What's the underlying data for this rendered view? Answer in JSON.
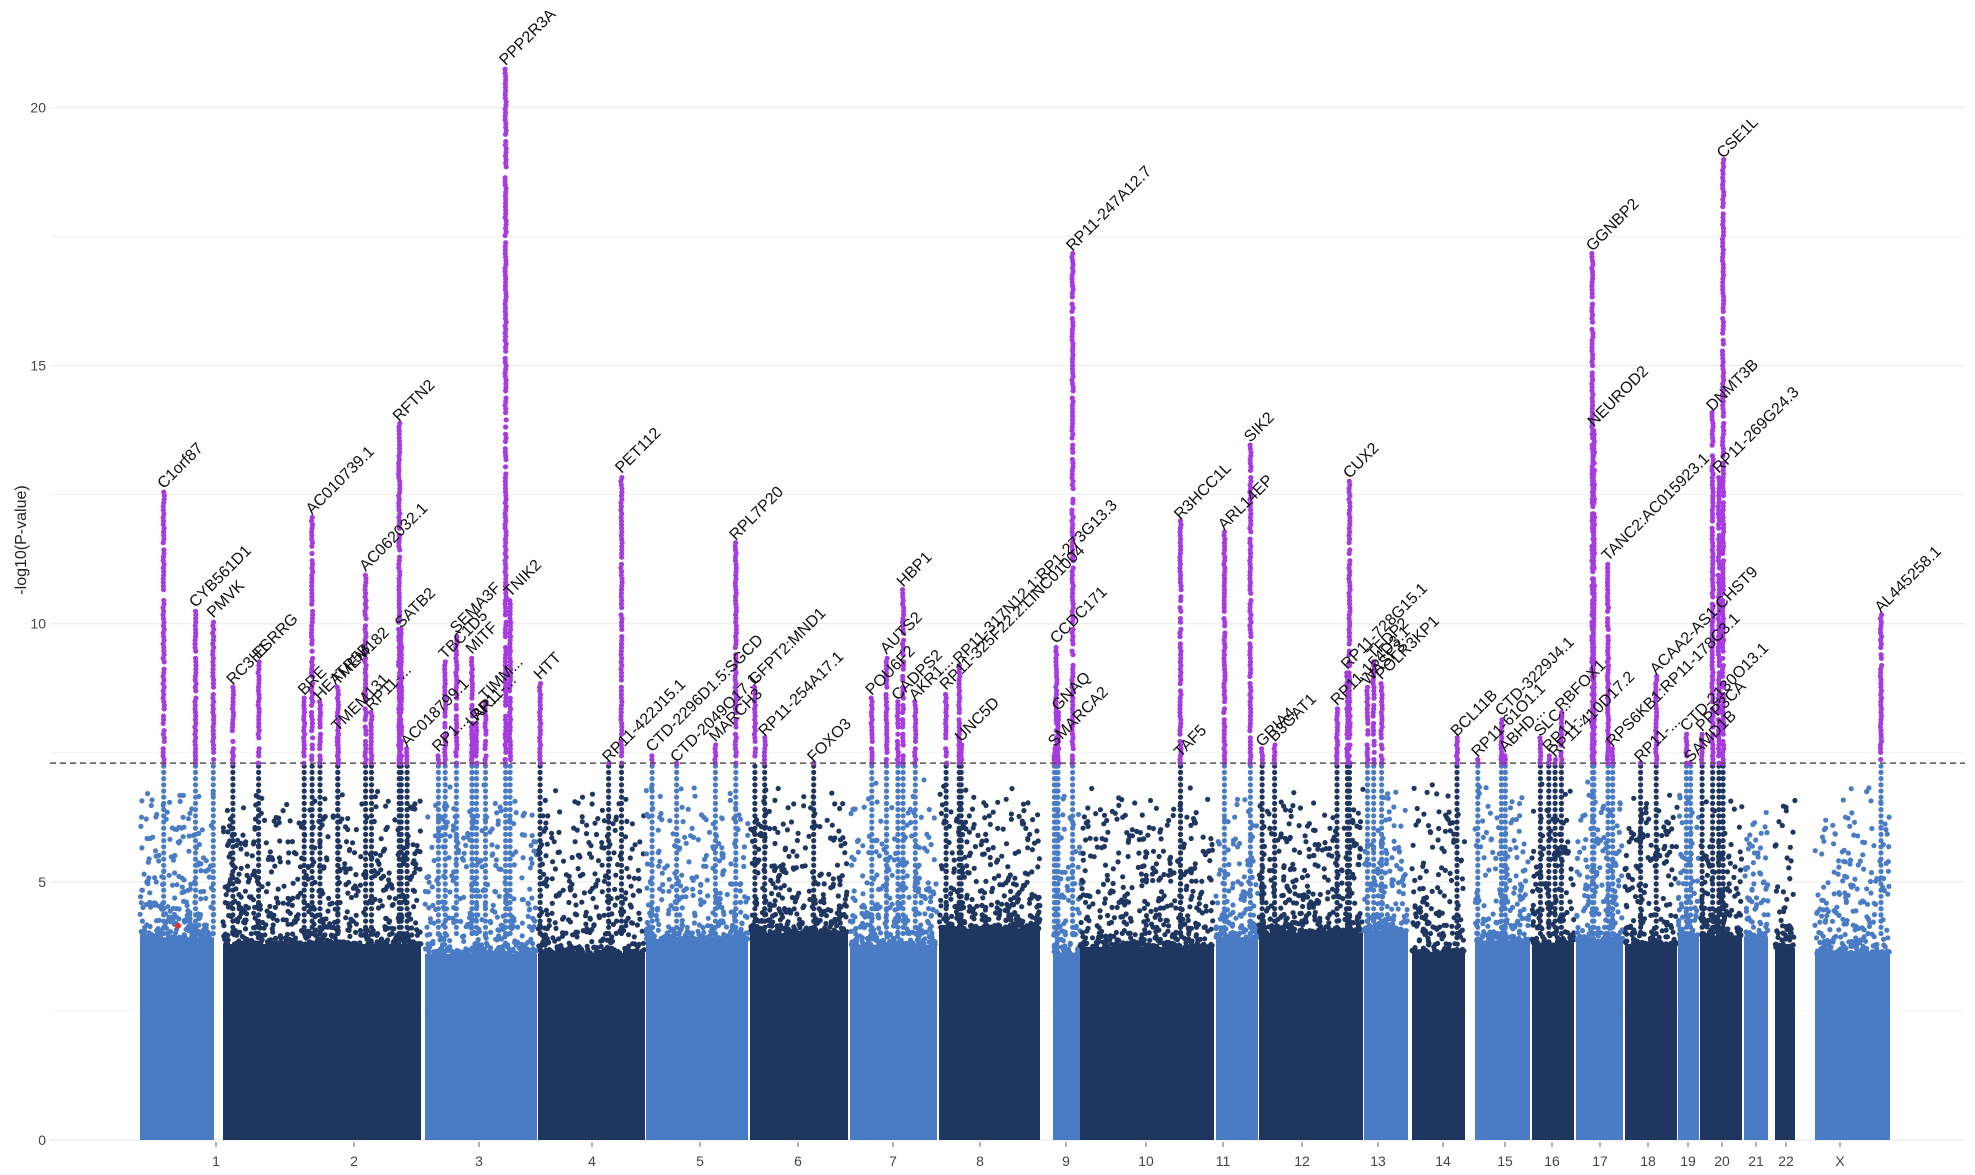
{
  "chart_data": {
    "type": "scatter",
    "subtype": "manhattan",
    "title": "",
    "xlabel": "",
    "ylabel": "-log10(P-value)",
    "ylim": [
      0,
      21.5
    ],
    "yticks": [
      0,
      5,
      10,
      15,
      20
    ],
    "significance_threshold": 7.3,
    "colors": {
      "light": "#4a7cc6",
      "dark": "#1f3660",
      "highlight": "#a63be0",
      "grid": "#ebebeb",
      "threshold": "#555555",
      "marker": "#e03030"
    },
    "chromosomes": [
      {
        "label": "1",
        "hits": [
          {
            "gene": "C1orf87",
            "rel": 0.32,
            "peak": 12.6
          },
          {
            "gene": "CYB561D1",
            "rel": 0.75,
            "peak": 10.3
          },
          {
            "gene": "PMVK",
            "rel": 0.99,
            "peak": 10.1
          }
        ]
      },
      {
        "label": "2",
        "hits": [
          {
            "gene": "RC3H1",
            "rel": 0.05,
            "peak": 8.8
          },
          {
            "gene": "ESRRG",
            "rel": 0.18,
            "peak": 9.3
          },
          {
            "gene": "BRE",
            "rel": 0.41,
            "peak": 8.6
          },
          {
            "gene": "AC010739.1",
            "rel": 0.45,
            "peak": 12.1
          },
          {
            "gene": "HEATR5B",
            "rel": 0.49,
            "peak": 8.5
          },
          {
            "gene": "TMEM182",
            "rel": 0.58,
            "peak": 8.8
          },
          {
            "gene": "TMEM131",
            "rel": 0.58,
            "peak": 7.9
          },
          {
            "gene": "AC062032.1",
            "rel": 0.72,
            "peak": 11.0
          },
          {
            "gene": "RP11-...",
            "rel": 0.75,
            "peak": 8.3
          },
          {
            "gene": "RFTN2",
            "rel": 0.89,
            "peak": 13.9
          },
          {
            "gene": "SATB2",
            "rel": 0.9,
            "peak": 9.9
          },
          {
            "gene": "AC018799.1",
            "rel": 0.93,
            "peak": 7.6
          }
        ]
      },
      {
        "label": "3",
        "hits": [
          {
            "gene": "RP1...",
            "rel": 0.12,
            "peak": 7.5
          },
          {
            "gene": "TBC1D5",
            "rel": 0.18,
            "peak": 9.3
          },
          {
            "gene": "SEMA3F",
            "rel": 0.28,
            "peak": 9.8
          },
          {
            "gene": "MITF",
            "rel": 0.42,
            "peak": 9.4
          },
          {
            "gene": "LAR...",
            "rel": 0.42,
            "peak": 8.0
          },
          {
            "gene": "RP11-...",
            "rel": 0.46,
            "peak": 8.1
          },
          {
            "gene": "TIMM...",
            "rel": 0.54,
            "peak": 8.5
          },
          {
            "gene": "PPP2R3A",
            "rel": 0.72,
            "peak": 20.8
          },
          {
            "gene": "TNIK2",
            "rel": 0.76,
            "peak": 10.5
          }
        ]
      },
      {
        "label": "4",
        "hits": [
          {
            "gene": "HTT",
            "rel": 0.02,
            "peak": 8.9
          },
          {
            "gene": "RP11-422J15.1",
            "rel": 0.66,
            "peak": 7.3
          },
          {
            "gene": "PET112",
            "rel": 0.78,
            "peak": 12.9
          }
        ]
      },
      {
        "label": "5",
        "hits": [
          {
            "gene": "CTD-2049O17.1",
            "rel": 0.3,
            "peak": 7.3
          },
          {
            "gene": "CTD-2296D1.5:SGCD",
            "rel": 0.06,
            "peak": 7.5
          },
          {
            "gene": "MARCH3",
            "rel": 0.68,
            "peak": 7.7
          },
          {
            "gene": "RPL7P20",
            "rel": 0.88,
            "peak": 11.6
          }
        ]
      },
      {
        "label": "6",
        "hits": [
          {
            "gene": "GFPT2:MND1",
            "rel": 0.05,
            "peak": 8.8
          },
          {
            "gene": "RP11-254A17.1",
            "rel": 0.15,
            "peak": 7.8
          },
          {
            "gene": "FOXO3",
            "rel": 0.65,
            "peak": 7.3
          }
        ]
      },
      {
        "label": "7",
        "hits": [
          {
            "gene": "POU6F2",
            "rel": 0.25,
            "peak": 8.6
          },
          {
            "gene": "AUTS2",
            "rel": 0.42,
            "peak": 9.4
          },
          {
            "gene": "CADPS2",
            "rel": 0.55,
            "peak": 8.5
          },
          {
            "gene": "HBP1",
            "rel": 0.61,
            "peak": 10.7
          },
          {
            "gene": "AKR1...",
            "rel": 0.75,
            "peak": 8.5
          }
        ]
      },
      {
        "label": "8",
        "hits": [
          {
            "gene": "RP11-325F22.2:LINC01004",
            "rel": 0.07,
            "peak": 8.7
          },
          {
            "gene": "RP11-317N12.1:RP1-273G13.3",
            "rel": 0.2,
            "peak": 9.2
          },
          {
            "gene": "UNC5D",
            "rel": 0.22,
            "peak": 7.7
          }
        ]
      },
      {
        "label": "9",
        "hits": [
          {
            "gene": "SMARCA2",
            "rel": 0.05,
            "peak": 7.6
          },
          {
            "gene": "CCDC171",
            "rel": 0.12,
            "peak": 9.6
          },
          {
            "gene": "GNAQ",
            "rel": 0.18,
            "peak": 8.3
          },
          {
            "gene": "RP11-247A12.7",
            "rel": 0.7,
            "peak": 17.2
          }
        ]
      },
      {
        "label": "10",
        "hits": [
          {
            "gene": "TAF5",
            "rel": 0.75,
            "peak": 7.4
          },
          {
            "gene": "R3HCC1L",
            "rel": 0.75,
            "peak": 12.0
          }
        ]
      },
      {
        "label": "11",
        "hits": [
          {
            "gene": "ARL14EP",
            "rel": 0.2,
            "peak": 11.8
          },
          {
            "gene": "SIK2",
            "rel": 0.82,
            "peak": 13.5
          }
        ]
      },
      {
        "label": "12",
        "hits": [
          {
            "gene": "GRIA4",
            "rel": 0.03,
            "peak": 7.6
          },
          {
            "gene": "B3GAT1",
            "rel": 0.15,
            "peak": 7.7
          },
          {
            "gene": "RP11-154D3.1",
            "rel": 0.75,
            "peak": 8.4
          },
          {
            "gene": "RP11-728G15.1",
            "rel": 0.85,
            "peak": 9.1
          },
          {
            "gene": "CUX2",
            "rel": 0.87,
            "peak": 12.8
          }
        ]
      },
      {
        "label": "13",
        "hits": [
          {
            "gene": "WASF3",
            "rel": 0.08,
            "peak": 8.8
          },
          {
            "gene": "TFDP2",
            "rel": 0.22,
            "peak": 9.3
          },
          {
            "gene": "POLR3KP1",
            "rel": 0.4,
            "peak": 8.9
          }
        ]
      },
      {
        "label": "14",
        "hits": [
          {
            "gene": "BCL11B",
            "rel": 0.85,
            "peak": 7.8
          }
        ]
      },
      {
        "label": "15",
        "hits": [
          {
            "gene": "RP11-61O1.1",
            "rel": 0.05,
            "peak": 7.4
          },
          {
            "gene": "CTD-3229J4.1",
            "rel": 0.48,
            "peak": 8.2
          },
          {
            "gene": "ABHD...",
            "rel": 0.55,
            "peak": 7.5
          }
        ]
      },
      {
        "label": "16",
        "hits": [
          {
            "gene": "SLC...",
            "rel": 0.2,
            "peak": 7.8
          },
          {
            "gene": "RP11-...",
            "rel": 0.4,
            "peak": 7.5
          },
          {
            "gene": "RBFOX1",
            "rel": 0.7,
            "peak": 8.3
          },
          {
            "gene": "RP11-410D17.2",
            "rel": 0.55,
            "peak": 7.4
          }
        ]
      },
      {
        "label": "17",
        "hits": [
          {
            "gene": "GGNBP2",
            "rel": 0.35,
            "peak": 17.2
          },
          {
            "gene": "NEUROD2",
            "rel": 0.38,
            "peak": 13.8
          },
          {
            "gene": "TANC2:AC015923.1",
            "rel": 0.68,
            "peak": 11.2
          },
          {
            "gene": "RPS6KB1:RP11-178C3.1",
            "rel": 0.78,
            "peak": 7.6
          }
        ]
      },
      {
        "label": "18",
        "hits": [
          {
            "gene": "ACAA2-AS1:CHST9",
            "rel": 0.6,
            "peak": 9.0
          },
          {
            "gene": "RP11-...",
            "rel": 0.3,
            "peak": 7.3
          }
        ]
      },
      {
        "label": "19",
        "hits": [
          {
            "gene": "CTD-2130O13.1",
            "rel": 0.4,
            "peak": 7.9
          },
          {
            "gene": "SAMD1B",
            "rel": 0.6,
            "peak": 7.3
          }
        ]
      },
      {
        "label": "20",
        "hits": [
          {
            "gene": "PPP3CA",
            "rel": 0.05,
            "peak": 7.9
          },
          {
            "gene": "DNMT3B",
            "rel": 0.3,
            "peak": 14.1
          },
          {
            "gene": "RP11-269G24.3",
            "rel": 0.45,
            "peak": 12.9
          },
          {
            "gene": "CSE1L",
            "rel": 0.55,
            "peak": 19.0
          }
        ]
      },
      {
        "label": "21",
        "hits": []
      },
      {
        "label": "22",
        "hits": []
      },
      {
        "label": "X",
        "hits": [
          {
            "gene": "AL445258.1",
            "rel": 0.88,
            "peak": 10.2
          }
        ]
      }
    ]
  }
}
